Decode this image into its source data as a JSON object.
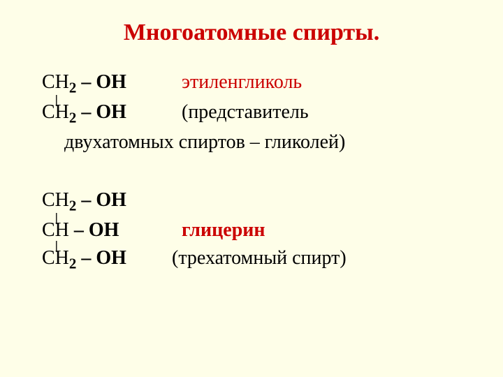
{
  "colors": {
    "background": "#fefee8",
    "text": "#000000",
    "accent": "#cb0000"
  },
  "title": {
    "text": "Многоатомные спирты",
    "dot": ".",
    "fontsize": 34
  },
  "body_fontsize": 28,
  "ethylene": {
    "line1_formula_CH": "СН",
    "line1_formula_sub": "2",
    "line1_formula_tail": " – ОН",
    "line1_name": "этиленгликоль",
    "bond": "|",
    "line2_formula_CH": "СН",
    "line2_formula_sub": "2",
    "line2_formula_tail": " – ОН",
    "line2_desc": "(представитель",
    "line3_desc": "двухатомных спиртов – гликолей)"
  },
  "glycerin": {
    "line1_formula_CH": "СН",
    "line1_formula_sub": "2",
    "line1_formula_tail": " – ОН",
    "bond1": "|",
    "line2_formula_CH": "СН ",
    "line2_formula_tail": " – ОН",
    "line2_name": "глицерин",
    "bond2": "|",
    "line3_formula_CH": "СН",
    "line3_formula_sub": "2",
    "line3_formula_tail": " – ОН",
    "line3_desc": "(трехатомный спирт)"
  }
}
